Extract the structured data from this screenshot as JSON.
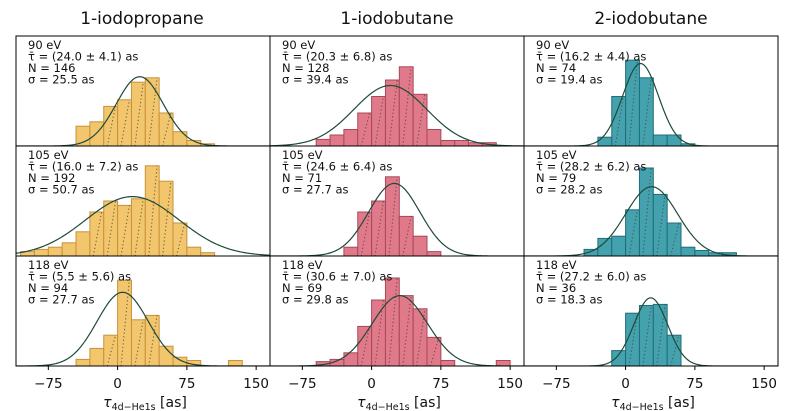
{
  "chart_data": {
    "type": "bar",
    "layout": "3x3 grid of histograms with gaussian fits",
    "columns": [
      "1-iodopropane",
      "1-iodobutane",
      "2-iodobutane"
    ],
    "xlabel": "τ_{4d−He1s} [as]",
    "xlabel_main": "τ",
    "xlabel_sub": "4d−He1s",
    "xlabel_unit": " [as]",
    "xlim": [
      -110,
      165
    ],
    "xticks": [
      -75,
      0,
      75,
      150
    ],
    "tick_labels": [
      "−75",
      "0",
      "75",
      "150"
    ],
    "colors": {
      "1-iodopropane": {
        "fill": "#f2c66d",
        "edge": "#c8913a"
      },
      "1-iodobutane": {
        "fill": "#e07a8a",
        "edge": "#a8485a"
      },
      "2-iodobutane": {
        "fill": "#43a2ae",
        "edge": "#216d78"
      },
      "fit": "#1f4a3a"
    },
    "bin_width": 15,
    "panels": [
      {
        "row": 0,
        "col": 0,
        "energy": "90 eV",
        "tau": "τ̄ = (24.0 ± 4.1) as",
        "N": "N = 146",
        "sigma": "σ = 25.5 as",
        "fit": {
          "mu": 24.0,
          "sigma": 25.5,
          "amp": 0.63
        },
        "bins": [
          {
            "x": -37.5,
            "h": 0.18
          },
          {
            "x": -22.5,
            "h": 0.22
          },
          {
            "x": -7.5,
            "h": 0.36
          },
          {
            "x": 7.5,
            "h": 0.42
          },
          {
            "x": 22.5,
            "h": 0.58
          },
          {
            "x": 37.5,
            "h": 0.62
          },
          {
            "x": 52.5,
            "h": 0.3
          },
          {
            "x": 67.5,
            "h": 0.13
          },
          {
            "x": 82.5,
            "h": 0.05
          },
          {
            "x": 97.5,
            "h": 0.02
          }
        ]
      },
      {
        "row": 0,
        "col": 1,
        "energy": "90 eV",
        "tau": "τ̄ = (20.3 ± 6.8) as",
        "N": "N = 128",
        "sigma": "σ = 39.4 as",
        "fit": {
          "mu": 20.3,
          "sigma": 39.4,
          "amp": 0.55
        },
        "bins": [
          {
            "x": -52.5,
            "h": 0.06
          },
          {
            "x": -37.5,
            "h": 0.1
          },
          {
            "x": -22.5,
            "h": 0.15
          },
          {
            "x": -7.5,
            "h": 0.3
          },
          {
            "x": 7.5,
            "h": 0.45
          },
          {
            "x": 22.5,
            "h": 0.6
          },
          {
            "x": 37.5,
            "h": 0.72
          },
          {
            "x": 52.5,
            "h": 0.47
          },
          {
            "x": 67.5,
            "h": 0.15
          },
          {
            "x": 82.5,
            "h": 0.05
          },
          {
            "x": 97.5,
            "h": 0.05
          },
          {
            "x": 112.5,
            "h": 0.03
          },
          {
            "x": 127.5,
            "h": 0.03
          }
        ]
      },
      {
        "row": 0,
        "col": 2,
        "energy": "90 eV",
        "tau": "τ̄ = (16.2 ± 4.4) as",
        "N": "N = 74",
        "sigma": "σ = 19.4 as",
        "fit": {
          "mu": 16.2,
          "sigma": 19.4,
          "amp": 0.75
        },
        "bins": [
          {
            "x": -22.5,
            "h": 0.08
          },
          {
            "x": -7.5,
            "h": 0.45
          },
          {
            "x": 7.5,
            "h": 0.78
          },
          {
            "x": 22.5,
            "h": 0.62
          },
          {
            "x": 37.5,
            "h": 0.1
          },
          {
            "x": 52.5,
            "h": 0.1
          },
          {
            "x": 67.5,
            "h": 0.02
          }
        ]
      },
      {
        "row": 1,
        "col": 0,
        "energy": "105 eV",
        "tau": "τ̄ = (16.0 ± 7.2) as",
        "N": "N = 192",
        "sigma": "σ = 50.7 as",
        "fit": {
          "mu": 16.0,
          "sigma": 50.7,
          "amp": 0.54
        },
        "bins": [
          {
            "x": -97.5,
            "h": 0.04
          },
          {
            "x": -82.5,
            "h": 0.06
          },
          {
            "x": -67.5,
            "h": 0.08
          },
          {
            "x": -52.5,
            "h": 0.12
          },
          {
            "x": -37.5,
            "h": 0.22
          },
          {
            "x": -22.5,
            "h": 0.4
          },
          {
            "x": -7.5,
            "h": 0.5
          },
          {
            "x": 7.5,
            "h": 0.46
          },
          {
            "x": 22.5,
            "h": 0.52
          },
          {
            "x": 37.5,
            "h": 0.82
          },
          {
            "x": 52.5,
            "h": 0.68
          },
          {
            "x": 67.5,
            "h": 0.3
          },
          {
            "x": 82.5,
            "h": 0.08
          },
          {
            "x": 97.5,
            "h": 0.03
          }
        ]
      },
      {
        "row": 1,
        "col": 1,
        "energy": "105 eV",
        "tau": "τ̄ = (24.6 ± 6.4) as",
        "N": "N = 71",
        "sigma": "σ = 27.7 as",
        "fit": {
          "mu": 24.6,
          "sigma": 27.7,
          "amp": 0.66
        },
        "bins": [
          {
            "x": -22.5,
            "h": 0.08
          },
          {
            "x": -7.5,
            "h": 0.4
          },
          {
            "x": 7.5,
            "h": 0.5
          },
          {
            "x": 22.5,
            "h": 0.72
          },
          {
            "x": 37.5,
            "h": 0.36
          },
          {
            "x": 52.5,
            "h": 0.18
          },
          {
            "x": 67.5,
            "h": 0.04
          }
        ]
      },
      {
        "row": 1,
        "col": 2,
        "energy": "105 eV",
        "tau": "τ̄ = (28.2 ± 6.2) as",
        "N": "N = 79",
        "sigma": "σ = 28.2 as",
        "fit": {
          "mu": 28.2,
          "sigma": 28.2,
          "amp": 0.63
        },
        "bins": [
          {
            "x": -37.5,
            "h": 0.06
          },
          {
            "x": -22.5,
            "h": 0.16
          },
          {
            "x": -7.5,
            "h": 0.18
          },
          {
            "x": 7.5,
            "h": 0.42
          },
          {
            "x": 22.5,
            "h": 0.8
          },
          {
            "x": 37.5,
            "h": 0.56
          },
          {
            "x": 52.5,
            "h": 0.3
          },
          {
            "x": 67.5,
            "h": 0.08
          },
          {
            "x": 82.5,
            "h": 0.05
          },
          {
            "x": 97.5,
            "h": 0.03
          },
          {
            "x": 112.5,
            "h": 0.03
          }
        ]
      },
      {
        "row": 2,
        "col": 0,
        "energy": "118 eV",
        "tau": "τ̄ = (5.5 ± 5.6) as",
        "N": "N = 94",
        "sigma": "σ = 27.7 as",
        "fit": {
          "mu": 5.5,
          "sigma": 27.7,
          "amp": 0.67
        },
        "bins": [
          {
            "x": -37.5,
            "h": 0.06
          },
          {
            "x": -22.5,
            "h": 0.16
          },
          {
            "x": -7.5,
            "h": 0.28
          },
          {
            "x": 7.5,
            "h": 0.78
          },
          {
            "x": 22.5,
            "h": 0.42
          },
          {
            "x": 37.5,
            "h": 0.46
          },
          {
            "x": 52.5,
            "h": 0.18
          },
          {
            "x": 67.5,
            "h": 0.08
          },
          {
            "x": 82.5,
            "h": 0.05
          },
          {
            "x": 127.5,
            "h": 0.05
          }
        ]
      },
      {
        "row": 2,
        "col": 1,
        "energy": "118 eV",
        "tau": "τ̄ = (30.6 ± 7.0) as",
        "N": "N = 69",
        "sigma": "σ = 29.8 as",
        "fit": {
          "mu": 30.6,
          "sigma": 29.8,
          "amp": 0.64
        },
        "bins": [
          {
            "x": -52.5,
            "h": 0.04
          },
          {
            "x": -37.5,
            "h": 0.06
          },
          {
            "x": -22.5,
            "h": 0.12
          },
          {
            "x": -7.5,
            "h": 0.36
          },
          {
            "x": 7.5,
            "h": 0.6
          },
          {
            "x": 22.5,
            "h": 0.8
          },
          {
            "x": 37.5,
            "h": 0.64
          },
          {
            "x": 52.5,
            "h": 0.52
          },
          {
            "x": 67.5,
            "h": 0.26
          },
          {
            "x": 82.5,
            "h": 0.05
          },
          {
            "x": 142.5,
            "h": 0.05
          }
        ]
      },
      {
        "row": 2,
        "col": 2,
        "energy": "118 eV",
        "tau": "τ̄ = (27.2 ± 6.0) as",
        "N": "N = 36",
        "sigma": "σ = 18.3 as",
        "fit": {
          "mu": 27.2,
          "sigma": 18.3,
          "amp": 0.62
        },
        "bins": [
          {
            "x": -7.5,
            "h": 0.14
          },
          {
            "x": 7.5,
            "h": 0.48
          },
          {
            "x": 22.5,
            "h": 0.55
          },
          {
            "x": 37.5,
            "h": 0.56
          },
          {
            "x": 52.5,
            "h": 0.28
          }
        ]
      }
    ]
  }
}
